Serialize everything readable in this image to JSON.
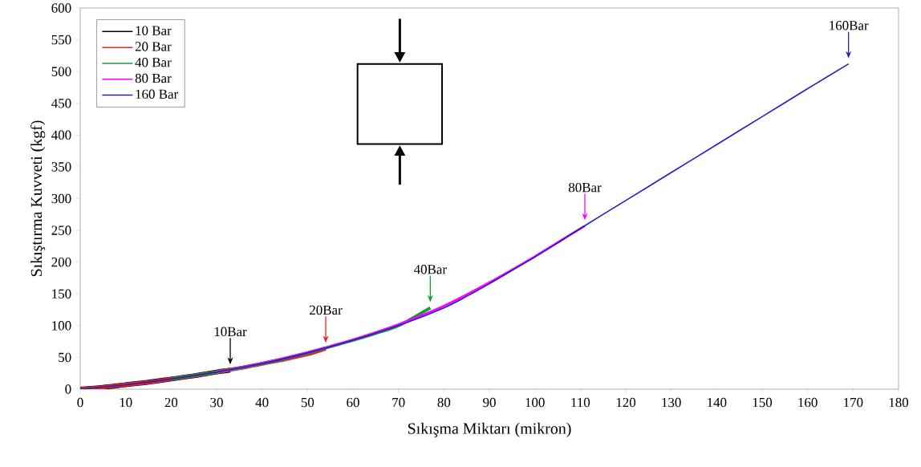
{
  "chart_data": {
    "type": "line",
    "xlabel": "Sıkışma Miktarı (mikron)",
    "ylabel": "Sıkıştırma Kuvveti (kgf)",
    "xlim": [
      0,
      180
    ],
    "xticks": [
      0,
      10,
      20,
      30,
      40,
      50,
      60,
      70,
      80,
      90,
      100,
      110,
      120,
      130,
      140,
      150,
      160,
      170,
      180
    ],
    "ylim": [
      0,
      600
    ],
    "yticks": [
      0,
      50,
      100,
      150,
      200,
      250,
      300,
      350,
      400,
      450,
      500,
      550,
      600
    ],
    "grid": false,
    "legend": "top left",
    "marker": "none",
    "line_style": "solid",
    "series": [
      {
        "name": "10 Bar",
        "color": "#000000",
        "x": [
          0,
          5,
          10,
          15,
          20,
          25,
          30,
          33
        ],
        "values": [
          0,
          3,
          7,
          11,
          16,
          21,
          27,
          30
        ]
      },
      {
        "name": "20 Bar",
        "color": "#e8231f",
        "x": [
          0,
          5,
          10,
          15,
          20,
          25,
          30,
          35,
          40,
          45,
          50,
          54
        ],
        "values": [
          0,
          3,
          7,
          11,
          16,
          21,
          27,
          33,
          40,
          47,
          55,
          64
        ]
      },
      {
        "name": "40 Bar",
        "color": "#1a9641",
        "x": [
          20,
          30,
          40,
          50,
          55,
          60,
          65,
          70,
          77
        ],
        "values": [
          16,
          27,
          40,
          57,
          67,
          77,
          88,
          100,
          128
        ]
      },
      {
        "name": "80 Bar",
        "color": "#ff00ff",
        "x": [
          30,
          40,
          50,
          60,
          70,
          80,
          90,
          100,
          105,
          111
        ],
        "values": [
          27,
          41,
          58,
          78,
          102,
          131,
          168,
          209,
          231,
          257
        ]
      },
      {
        "name": "160 Bar",
        "color": "#2020c0",
        "x": [
          0,
          10,
          20,
          30,
          40,
          50,
          60,
          70,
          80,
          85,
          90,
          95,
          100,
          105,
          110,
          120,
          130,
          140,
          150,
          160,
          169
        ],
        "values": [
          0,
          7,
          16,
          27,
          40,
          57,
          77,
          100,
          128,
          146,
          166,
          187,
          208,
          230,
          253,
          297,
          341,
          385,
          429,
          473,
          512
        ]
      }
    ],
    "annotations": [
      {
        "text": "10Bar",
        "x": 33,
        "y": 30
      },
      {
        "text": "20Bar",
        "x": 54,
        "y": 64
      },
      {
        "text": "40Bar",
        "x": 77,
        "y": 128
      },
      {
        "text": "80Bar",
        "x": 111,
        "y": 257
      },
      {
        "text": "160Bar",
        "x": 169,
        "y": 512
      }
    ]
  }
}
